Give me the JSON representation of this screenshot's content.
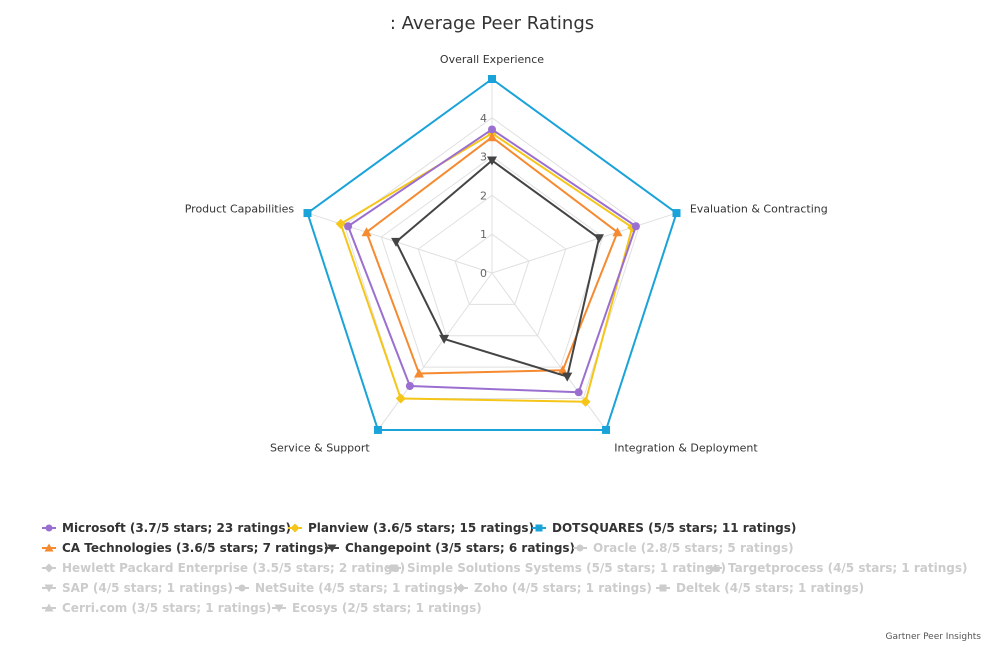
{
  "title": ": Average Peer Ratings",
  "credit": "Gartner Peer Insights",
  "chart_data": {
    "type": "radar",
    "categories": [
      "Overall Experience",
      "Evaluation & Contracting",
      "Integration & Deployment",
      "Service & Support",
      "Product Capabilities"
    ],
    "tick_labels": [
      "0",
      "1",
      "2",
      "3",
      "4"
    ],
    "ylim": [
      0,
      5
    ],
    "grid": true,
    "legend_position": "bottom",
    "series": [
      {
        "name": "Microsoft (3.7/5 stars; 23 ratings)",
        "color": "#9b6fd0",
        "marker": "circle",
        "visible": true,
        "values": [
          3.7,
          3.9,
          3.8,
          3.6,
          3.9
        ]
      },
      {
        "name": "Planview (3.6/5 stars; 15 ratings)",
        "color": "#f5c518",
        "marker": "diamond",
        "visible": true,
        "values": [
          3.6,
          3.8,
          4.1,
          4.0,
          4.1
        ]
      },
      {
        "name": "DOTSQUARES (5/5 stars; 11 ratings)",
        "color": "#1aa3d9",
        "marker": "square",
        "visible": true,
        "values": [
          5,
          5,
          5,
          5,
          5
        ]
      },
      {
        "name": "CA Technologies (3.6/5 stars; 7 ratings)",
        "color": "#f58a30",
        "marker": "triangle",
        "visible": true,
        "values": [
          3.5,
          3.4,
          3.1,
          3.2,
          3.4
        ]
      },
      {
        "name": "Changepoint (3/5 stars; 6 ratings)",
        "color": "#444444",
        "marker": "triangle-down",
        "visible": true,
        "values": [
          2.9,
          2.9,
          3.3,
          2.1,
          2.6
        ]
      },
      {
        "name": "Oracle (2.8/5 stars; 5 ratings)",
        "color": "#cccccc",
        "marker": "circle",
        "visible": false
      },
      {
        "name": "Hewlett Packard Enterprise (3.5/5 stars; 2 ratings)",
        "color": "#cccccc",
        "marker": "diamond",
        "visible": false
      },
      {
        "name": "Simple Solutions Systems (5/5 stars; 1 ratings)",
        "color": "#cccccc",
        "marker": "square",
        "visible": false
      },
      {
        "name": "Targetprocess (4/5 stars; 1 ratings)",
        "color": "#cccccc",
        "marker": "triangle",
        "visible": false
      },
      {
        "name": "SAP (4/5 stars; 1 ratings)",
        "color": "#cccccc",
        "marker": "triangle-down",
        "visible": false
      },
      {
        "name": "NetSuite (4/5 stars; 1 ratings)",
        "color": "#cccccc",
        "marker": "circle",
        "visible": false
      },
      {
        "name": "Zoho (4/5 stars; 1 ratings)",
        "color": "#cccccc",
        "marker": "diamond",
        "visible": false
      },
      {
        "name": "Deltek (4/5 stars; 1 ratings)",
        "color": "#cccccc",
        "marker": "square",
        "visible": false
      },
      {
        "name": "Cerri.com (3/5 stars; 1 ratings)",
        "color": "#cccccc",
        "marker": "triangle",
        "visible": false
      },
      {
        "name": "Ecosys (2/5 stars; 1 ratings)",
        "color": "#cccccc",
        "marker": "triangle-down",
        "visible": false
      }
    ]
  }
}
